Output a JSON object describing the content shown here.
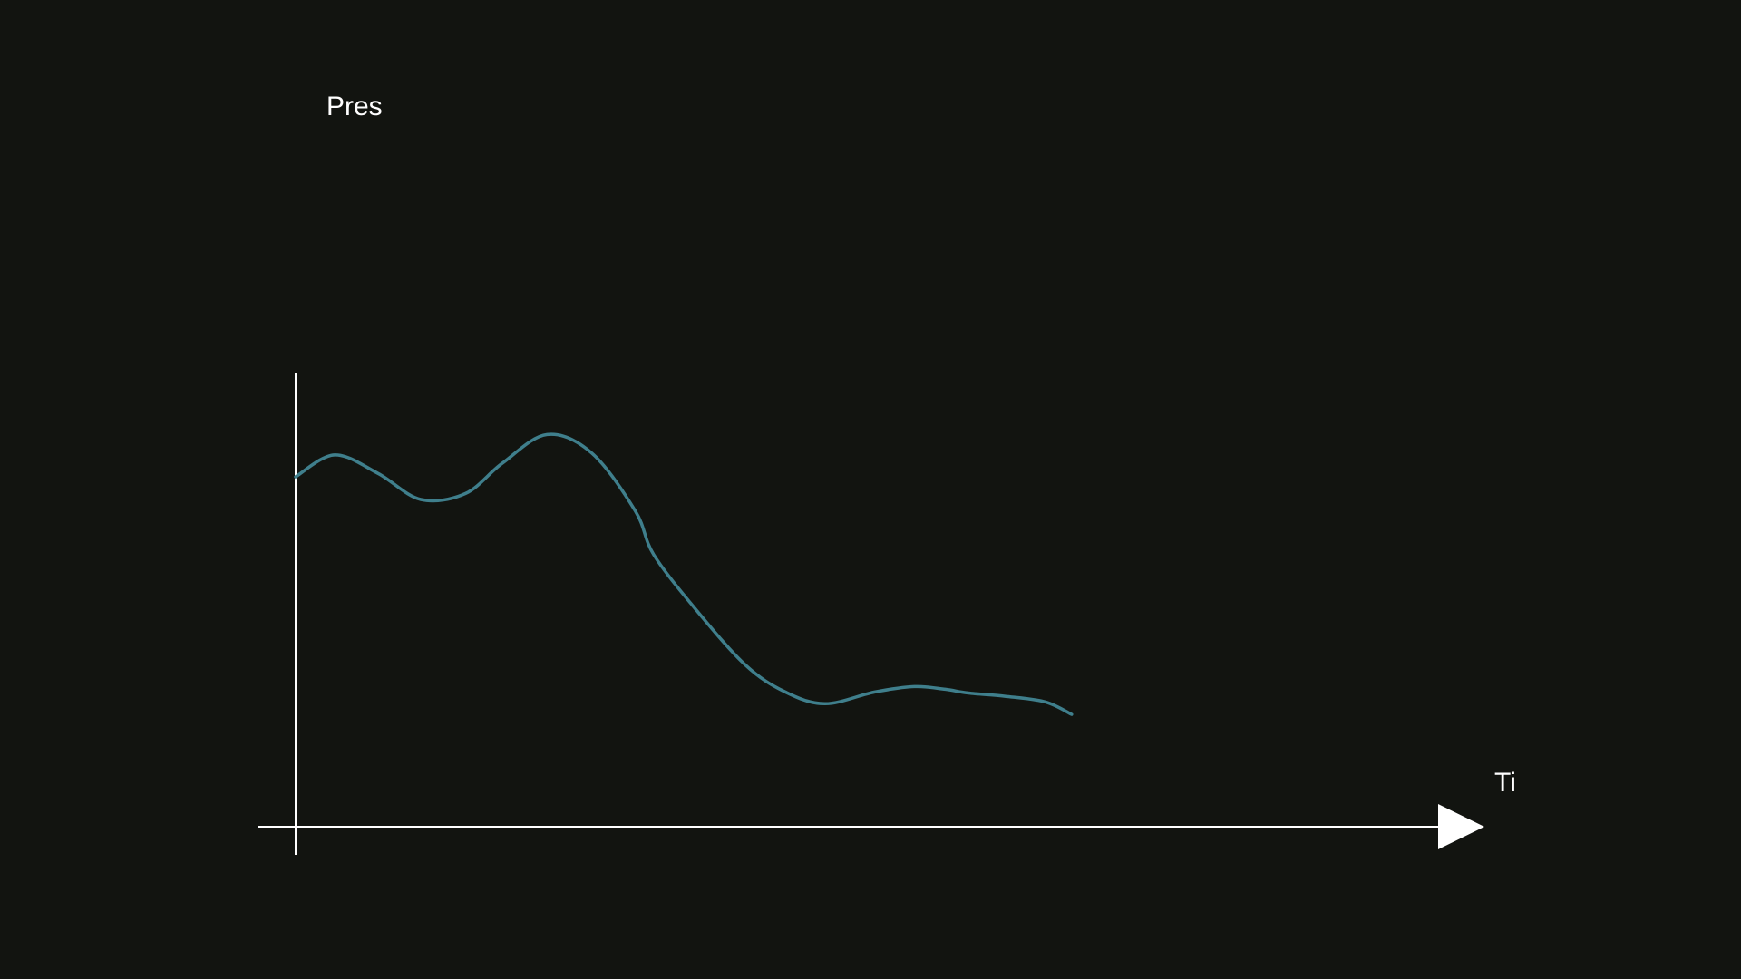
{
  "chart_data": {
    "type": "line",
    "ylabel": "Pres",
    "xlabel": "Ti",
    "xlim": [
      0,
      100
    ],
    "ylim": [
      0,
      100
    ],
    "grid": false,
    "legend": "none",
    "series": [
      {
        "color": "#3f7f8c",
        "x": [
          0,
          3.4,
          7.2,
          10.9,
          14.8,
          18.0,
          21.9,
          25.8,
          29.6,
          31.2,
          35.0,
          39.2,
          42.6,
          46.1,
          50.4,
          53.9,
          56.6,
          58.6,
          61.8,
          65.3,
          67.6
        ],
        "y": [
          75.4,
          80.1,
          76.1,
          70.5,
          71.8,
          78.3,
          84.5,
          80.5,
          68.0,
          58.6,
          46.4,
          34.8,
          29.1,
          26.5,
          29.0,
          30.2,
          29.6,
          28.8,
          28.1,
          26.9,
          24.2
        ]
      }
    ]
  },
  "colors": {
    "background": "#121410",
    "axes": "#ffffff",
    "series": "#3f7f8c"
  }
}
